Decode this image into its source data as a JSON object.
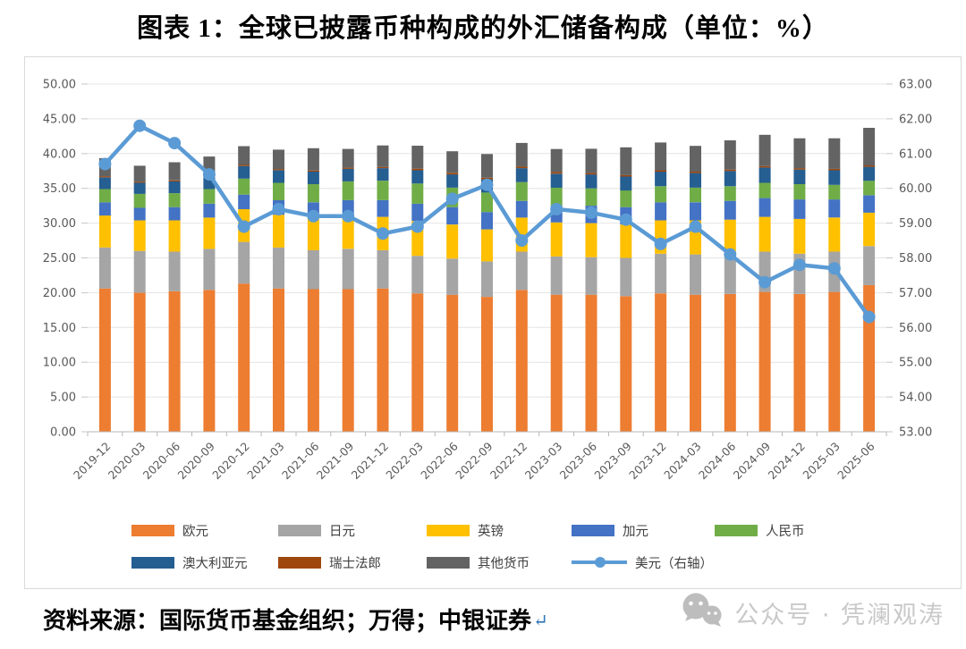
{
  "title": "图表 1：全球已披露币种构成的外汇储备构成（单位：%）",
  "source_note": "资料来源：国际货币基金组织；万得；中银证券",
  "return_mark": "↵",
  "watermark": {
    "icon": "wechat-icon",
    "label": "公众号 · 凭澜观涛",
    "color": "#c9c9c9"
  },
  "chart_data": {
    "type": "bar",
    "subtype": "stacked-bars-with-secondary-axis-line",
    "title": "全球已披露币种构成的外汇储备构成（单位：%）",
    "categories": [
      "2019-12",
      "2020-03",
      "2020-06",
      "2020-09",
      "2020-12",
      "2021-03",
      "2021-06",
      "2021-09",
      "2021-12",
      "2022-03",
      "2022-06",
      "2022-09",
      "2022-12",
      "2023-03",
      "2023-06",
      "2023-09",
      "2023-12",
      "2024-03",
      "2024-06",
      "2024-09",
      "2024-12",
      "2025-03",
      "2025-06"
    ],
    "series": [
      {
        "name": "欧元",
        "type": "bar",
        "color": "#ED7D31",
        "axis": "left",
        "values": [
          20.6,
          20.0,
          20.2,
          20.4,
          21.3,
          20.6,
          20.5,
          20.5,
          20.6,
          19.9,
          19.7,
          19.4,
          20.4,
          19.7,
          19.7,
          19.5,
          19.9,
          19.7,
          19.8,
          20.1,
          19.8,
          20.1,
          21.1
        ]
      },
      {
        "name": "日元",
        "type": "bar",
        "color": "#A5A5A5",
        "axis": "left",
        "values": [
          5.9,
          6.0,
          5.7,
          5.9,
          6.0,
          5.9,
          5.6,
          5.8,
          5.5,
          5.4,
          5.2,
          5.1,
          5.5,
          5.5,
          5.4,
          5.5,
          5.7,
          5.8,
          5.8,
          5.8,
          5.8,
          5.8,
          5.6
        ]
      },
      {
        "name": "英镑",
        "type": "bar",
        "color": "#FFC000",
        "axis": "left",
        "values": [
          4.6,
          4.4,
          4.5,
          4.5,
          4.7,
          4.7,
          4.7,
          4.8,
          4.8,
          5.0,
          4.9,
          4.6,
          4.9,
          4.9,
          4.9,
          4.8,
          4.8,
          4.9,
          4.9,
          5.0,
          5.0,
          4.9,
          4.8
        ]
      },
      {
        "name": "加元",
        "type": "bar",
        "color": "#4472C4",
        "axis": "left",
        "values": [
          1.9,
          1.8,
          1.9,
          2.0,
          2.1,
          2.1,
          2.2,
          2.2,
          2.4,
          2.5,
          2.5,
          2.5,
          2.4,
          2.4,
          2.5,
          2.5,
          2.6,
          2.6,
          2.7,
          2.7,
          2.8,
          2.6,
          2.5
        ]
      },
      {
        "name": "人民币",
        "type": "bar",
        "color": "#70AD47",
        "axis": "left",
        "values": [
          1.9,
          2.0,
          2.0,
          2.1,
          2.3,
          2.5,
          2.6,
          2.7,
          2.8,
          2.9,
          2.8,
          2.8,
          2.7,
          2.6,
          2.5,
          2.4,
          2.3,
          2.1,
          2.1,
          2.2,
          2.2,
          2.1,
          2.1
        ]
      },
      {
        "name": "澳大利亚元",
        "type": "bar",
        "color": "#255E91",
        "axis": "left",
        "values": [
          1.7,
          1.6,
          1.7,
          1.7,
          1.8,
          1.8,
          1.8,
          1.8,
          1.8,
          1.9,
          1.9,
          1.9,
          2.0,
          2.0,
          2.0,
          2.0,
          2.1,
          2.1,
          2.2,
          2.2,
          2.1,
          2.1,
          2.0
        ]
      },
      {
        "name": "瑞士法郎",
        "type": "bar",
        "color": "#9E480E",
        "axis": "left",
        "values": [
          0.15,
          0.15,
          0.15,
          0.17,
          0.17,
          0.17,
          0.17,
          0.17,
          0.17,
          0.23,
          0.23,
          0.23,
          0.23,
          0.25,
          0.2,
          0.2,
          0.2,
          0.2,
          0.2,
          0.2,
          0.2,
          0.2,
          0.2
        ]
      },
      {
        "name": "其他货币",
        "type": "bar",
        "color": "#636363",
        "axis": "left",
        "values": [
          2.6,
          2.3,
          2.6,
          2.8,
          2.7,
          2.8,
          3.2,
          2.7,
          3.1,
          3.3,
          3.1,
          3.4,
          3.4,
          3.3,
          3.5,
          4.0,
          4.0,
          3.7,
          4.2,
          4.5,
          4.3,
          4.4,
          5.4
        ]
      },
      {
        "name": "美元（右轴）",
        "type": "line",
        "color": "#5B9BD5",
        "axis": "right",
        "values": [
          60.7,
          61.8,
          61.3,
          60.4,
          58.9,
          59.4,
          59.2,
          59.2,
          58.7,
          58.9,
          59.7,
          60.1,
          58.5,
          59.4,
          59.3,
          59.1,
          58.4,
          58.9,
          58.1,
          57.3,
          57.8,
          57.7,
          56.3
        ]
      }
    ],
    "left_axis": {
      "min": 0,
      "max": 50,
      "step": 5,
      "format": "0.00",
      "ticks": [
        "0.00",
        "5.00",
        "10.00",
        "15.00",
        "20.00",
        "25.00",
        "30.00",
        "35.00",
        "40.00",
        "45.00",
        "50.00"
      ]
    },
    "right_axis": {
      "min": 53,
      "max": 63,
      "step": 1,
      "format": "0.00",
      "ticks": [
        "53.00",
        "54.00",
        "55.00",
        "56.00",
        "57.00",
        "58.00",
        "59.00",
        "60.00",
        "61.00",
        "62.00",
        "63.00"
      ]
    },
    "grid": true,
    "legend_position": "bottom",
    "legend_rows": [
      [
        "欧元",
        "日元",
        "英镑",
        "加元",
        "人民币"
      ],
      [
        "澳大利亚元",
        "瑞士法郎",
        "其他货币",
        "美元（右轴）"
      ]
    ]
  }
}
